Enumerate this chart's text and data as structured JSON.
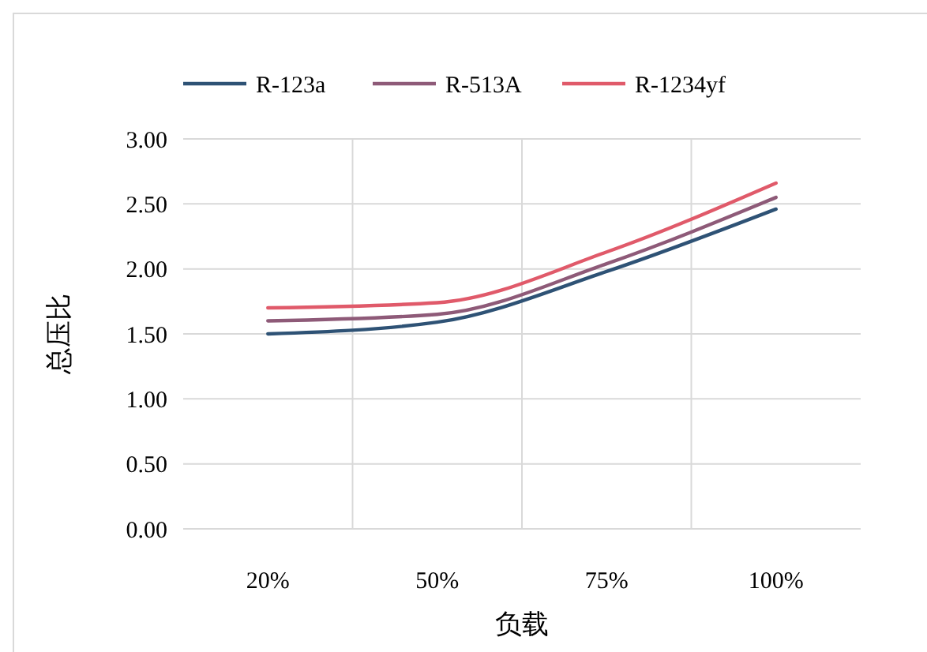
{
  "chart_data": {
    "type": "line",
    "xlabel": "负载",
    "ylabel": "总压比",
    "categories": [
      "20%",
      "50%",
      "75%",
      "100%"
    ],
    "series": [
      {
        "name": "R-123a",
        "color": "#2e5275",
        "values": [
          1.5,
          1.59,
          1.98,
          2.46
        ]
      },
      {
        "name": "R-513A",
        "color": "#8e5a78",
        "values": [
          1.6,
          1.65,
          2.04,
          2.55
        ]
      },
      {
        "name": "R-1234yf",
        "color": "#e05a6a",
        "values": [
          1.7,
          1.74,
          2.13,
          2.66
        ]
      }
    ],
    "ylim": [
      0,
      3
    ],
    "yticks": [
      {
        "value": 0,
        "label": "0.00"
      },
      {
        "value": 0.5,
        "label": "0.50"
      },
      {
        "value": 1,
        "label": "1.00"
      },
      {
        "value": 1.5,
        "label": "1.50"
      },
      {
        "value": 2,
        "label": "2.00"
      },
      {
        "value": 2.5,
        "label": "2.50"
      },
      {
        "value": 3,
        "label": "3.00"
      }
    ],
    "grid": true,
    "legend": "top",
    "marker": "none",
    "line_style": "solid"
  }
}
